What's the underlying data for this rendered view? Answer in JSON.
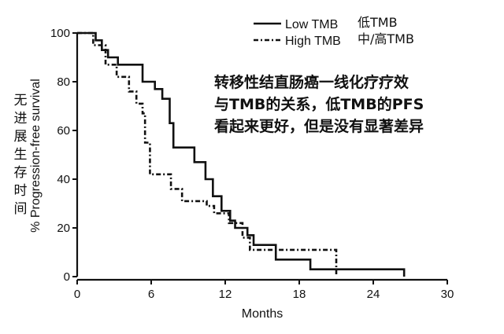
{
  "chart_data": {
    "type": "line",
    "subtype": "kaplan-meier step",
    "title": "",
    "xlabel": "Months",
    "ylabel": "% Progression-free survival",
    "ylabel_cn": "无进展生存时间",
    "xlim": [
      0,
      30
    ],
    "ylim": [
      0,
      100
    ],
    "x_ticks": [
      "0",
      "6",
      "12",
      "18",
      "24",
      "30"
    ],
    "y_ticks": [
      "0",
      "20",
      "40",
      "60",
      "80",
      "100"
    ],
    "grid": false,
    "legend_position": "top-right",
    "series": [
      {
        "name": "Low TMB",
        "name_cn": "低TMB",
        "line_style": "solid",
        "color": "#111111",
        "x": [
          0,
          1.5,
          2.0,
          2.5,
          3.3,
          5.3,
          6.3,
          6.9,
          7.5,
          7.8,
          9.5,
          10.4,
          11.0,
          11.7,
          12.4,
          12.8,
          13.8,
          14.3,
          16.1,
          18.9,
          20.8,
          26.5
        ],
        "y": [
          100,
          97,
          93,
          90,
          87,
          80,
          77,
          73,
          63,
          53,
          47,
          40,
          33,
          27,
          23,
          20,
          17,
          13,
          7,
          3,
          3,
          0
        ]
      },
      {
        "name": "High TMB",
        "name_cn": "中/高TMB",
        "line_style": "dashed",
        "color": "#111111",
        "x": [
          0,
          1.3,
          2.3,
          3.2,
          4.2,
          4.8,
          5.3,
          5.5,
          5.9,
          7.6,
          8.5,
          10.5,
          11.1,
          12.3,
          13.4,
          14.0,
          21.0
        ],
        "y": [
          100,
          95,
          87,
          82,
          76,
          71,
          67,
          55,
          42,
          36,
          31,
          29,
          26,
          22,
          16,
          11,
          0
        ]
      }
    ],
    "annotation": [
      "转移性结直肠癌一线化疗疗效",
      "与TMB的关系，低TMB的PFS",
      "看起来更好，但是没有显著差异"
    ]
  }
}
